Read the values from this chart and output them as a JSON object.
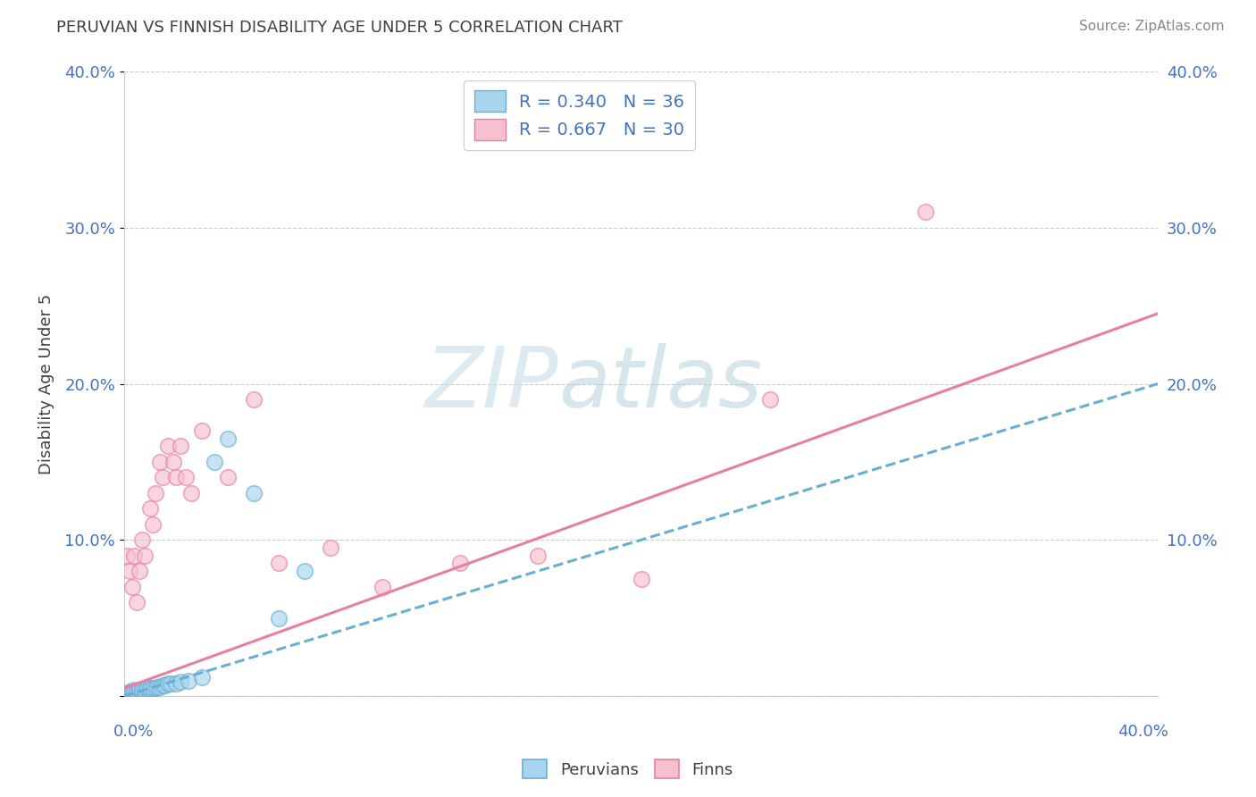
{
  "title": "PERUVIAN VS FINNISH DISABILITY AGE UNDER 5 CORRELATION CHART",
  "source": "Source: ZipAtlas.com",
  "ylabel": "Disability Age Under 5",
  "legend_label1": "Peruvians",
  "legend_label2": "Finns",
  "r1": 0.34,
  "n1": 36,
  "r2": 0.667,
  "n2": 30,
  "watermark_zip": "ZIP",
  "watermark_atlas": "atlas",
  "color_peru": "#a8d4ed",
  "color_peru_edge": "#6aaed6",
  "color_peru_line": "#6aaed6",
  "color_finn": "#f7c0cf",
  "color_finn_edge": "#e87fa0",
  "color_finn_line": "#e87fa0",
  "color_text_blue": "#4472c4",
  "color_title": "#404040",
  "color_grid": "#cccccc",
  "color_source": "#888888",
  "xlim": [
    0.0,
    0.4
  ],
  "ylim": [
    0.0,
    0.4
  ],
  "yticks": [
    0.0,
    0.1,
    0.2,
    0.3,
    0.4
  ],
  "ytick_labels_left": [
    "",
    "10.0%",
    "20.0%",
    "30.0%",
    "40.0%"
  ],
  "ytick_labels_right": [
    "",
    "10.0%",
    "20.0%",
    "30.0%",
    "40.0%"
  ],
  "xtick_left_label": "0.0%",
  "xtick_right_label": "40.0%",
  "peru_x": [
    0.001,
    0.002,
    0.002,
    0.003,
    0.003,
    0.004,
    0.004,
    0.005,
    0.005,
    0.006,
    0.006,
    0.007,
    0.007,
    0.008,
    0.008,
    0.009,
    0.009,
    0.01,
    0.01,
    0.011,
    0.012,
    0.013,
    0.014,
    0.015,
    0.016,
    0.017,
    0.018,
    0.02,
    0.022,
    0.025,
    0.03,
    0.035,
    0.04,
    0.05,
    0.06,
    0.07
  ],
  "peru_y": [
    0.002,
    0.001,
    0.003,
    0.002,
    0.003,
    0.002,
    0.004,
    0.002,
    0.003,
    0.003,
    0.004,
    0.003,
    0.004,
    0.003,
    0.004,
    0.004,
    0.005,
    0.004,
    0.005,
    0.005,
    0.005,
    0.006,
    0.006,
    0.007,
    0.007,
    0.008,
    0.008,
    0.008,
    0.009,
    0.01,
    0.012,
    0.15,
    0.165,
    0.13,
    0.05,
    0.08
  ],
  "finn_x": [
    0.001,
    0.002,
    0.003,
    0.004,
    0.005,
    0.006,
    0.007,
    0.008,
    0.01,
    0.011,
    0.012,
    0.014,
    0.015,
    0.017,
    0.019,
    0.02,
    0.022,
    0.024,
    0.026,
    0.03,
    0.04,
    0.05,
    0.06,
    0.08,
    0.1,
    0.13,
    0.16,
    0.2,
    0.25,
    0.31
  ],
  "finn_y": [
    0.09,
    0.08,
    0.07,
    0.09,
    0.06,
    0.08,
    0.1,
    0.09,
    0.12,
    0.11,
    0.13,
    0.15,
    0.14,
    0.16,
    0.15,
    0.14,
    0.16,
    0.14,
    0.13,
    0.17,
    0.14,
    0.19,
    0.085,
    0.095,
    0.07,
    0.085,
    0.09,
    0.075,
    0.19,
    0.31
  ],
  "peru_trend_x": [
    0.0,
    0.4
  ],
  "peru_trend_y": [
    0.0,
    0.2
  ],
  "finn_trend_x": [
    0.0,
    0.4
  ],
  "finn_trend_y": [
    0.005,
    0.245
  ],
  "background_color": "#ffffff"
}
